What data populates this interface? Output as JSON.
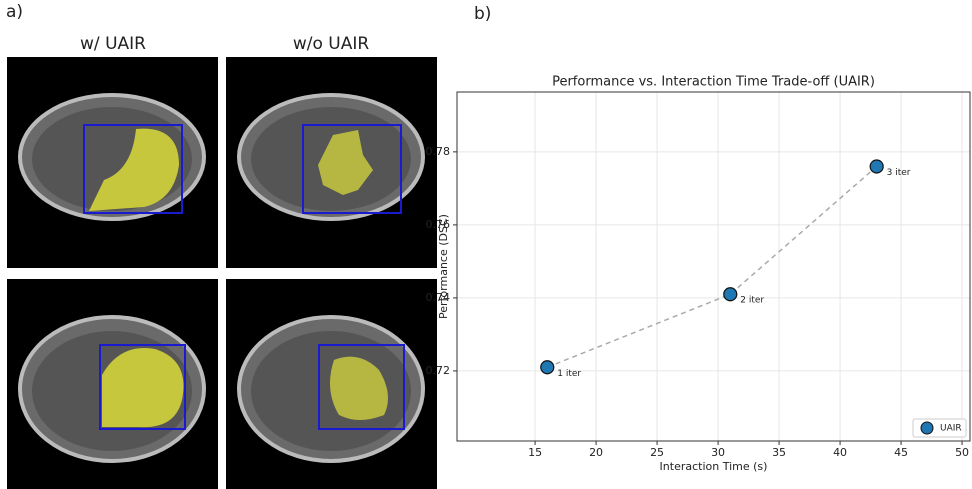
{
  "panel_a": {
    "label": "a)",
    "columns": [
      "w/ UAIR",
      "w/o UAIR"
    ]
  },
  "panel_b": {
    "label": "b)"
  },
  "chart_data": {
    "type": "scatter",
    "title": "Performance vs. Interaction Time Trade-off (UAIR)",
    "x_label": "Interaction Time (s)",
    "y_label": "Performance (DSC)",
    "series": [
      {
        "name": "UAIR",
        "color": "#1f77b4",
        "x": [
          16,
          31,
          43
        ],
        "values": [
          0.721,
          0.741,
          0.776
        ],
        "point_labels": [
          "1 iter",
          "2 iter",
          "3 iter"
        ]
      }
    ],
    "xlim": [
      8.6,
      50.65
    ],
    "ylim": [
      0.7008,
      0.7964
    ],
    "xticks": [
      15,
      20,
      25,
      30,
      35,
      40,
      45,
      50
    ],
    "yticks": [
      0.72,
      0.74,
      0.76,
      0.78
    ],
    "grid": true,
    "connect_points": true,
    "legend": "lower right"
  }
}
